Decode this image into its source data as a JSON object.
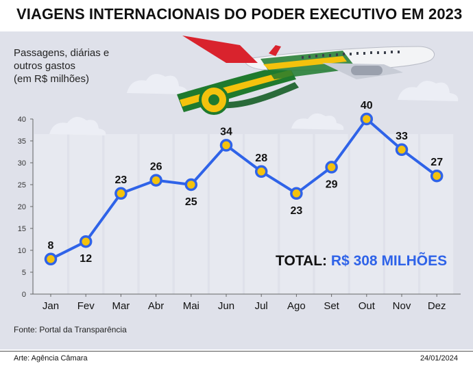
{
  "header": {
    "title": "VIAGENS INTERNACIONAIS DO PODER EXECUTIVO EM 2023"
  },
  "chart_data": {
    "type": "line",
    "title": "VIAGENS INTERNACIONAIS DO PODER EXECUTIVO EM 2023",
    "ylabel": "Passagens, diárias e\noutros gastos\n(em R$ milhões)",
    "xlabel": "",
    "categories": [
      "Jan",
      "Fev",
      "Mar",
      "Abr",
      "Mai",
      "Jun",
      "Jul",
      "Ago",
      "Set",
      "Out",
      "Nov",
      "Dez"
    ],
    "values": [
      8,
      12,
      23,
      26,
      25,
      34,
      28,
      23,
      29,
      40,
      33,
      27
    ],
    "label_below": [
      false,
      true,
      false,
      false,
      true,
      false,
      false,
      true,
      true,
      false,
      false,
      false
    ],
    "ylim": [
      0,
      40
    ],
    "yticks": [
      0,
      5,
      10,
      15,
      20,
      25,
      30,
      35,
      40
    ],
    "grid": false,
    "colors": {
      "line": "#2f63e8",
      "marker_fill": "#f4c20d",
      "stripe": "#eceef4",
      "panel": "#dfe1ea"
    }
  },
  "total": {
    "label": "TOTAL:",
    "value": "R$ 308 MILHÕES"
  },
  "footer": {
    "source": "Fonte: Portal da Transparência",
    "credit": "Arte: Agência Câmara",
    "date": "24/01/2024"
  }
}
